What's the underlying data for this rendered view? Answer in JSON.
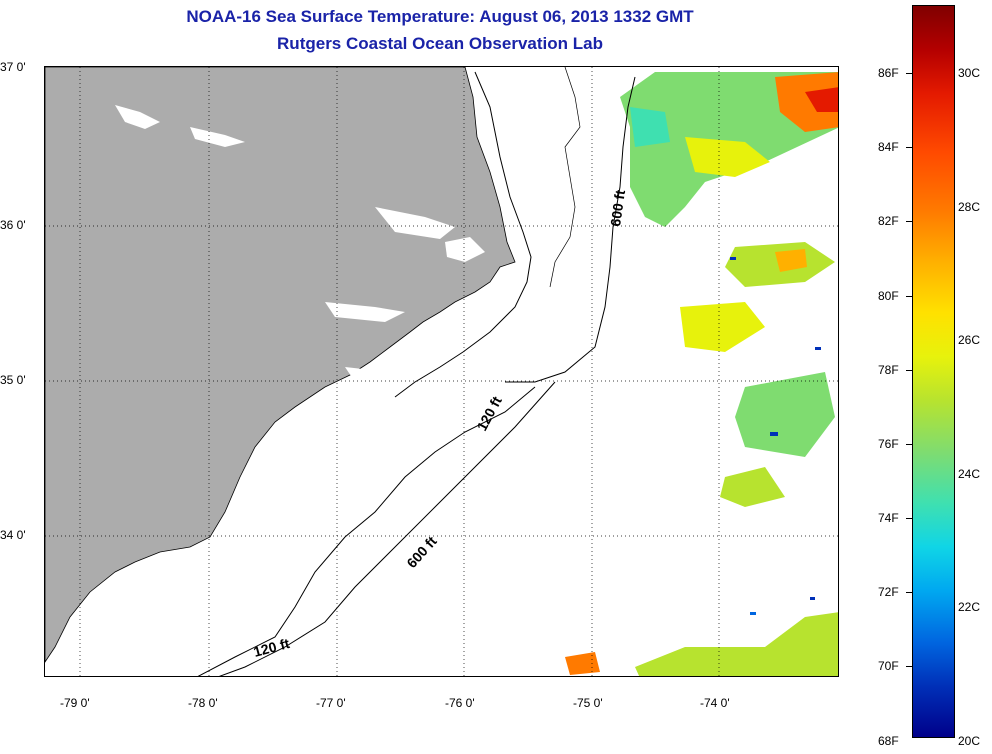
{
  "title": {
    "line1": "NOAA-16 Sea Surface Temperature:  August 06, 2013 1332 GMT",
    "line2": "Rutgers Coastal Ocean Observation Lab"
  },
  "map": {
    "latitude_labels": [
      "37 0'",
      "36 0'",
      "35 0'",
      "34 0'"
    ],
    "longitude_labels": [
      "-79 0'",
      "-78 0'",
      "-77 0'",
      "-76 0'",
      "-75 0'",
      "-74 0'"
    ],
    "contour_labels": [
      "600 ft",
      "120 ft",
      "600 ft",
      "120 ft"
    ],
    "colors": {
      "land": "#acacac",
      "ocean": "#ffffff",
      "coastline": "#000000",
      "grid": "#000000"
    }
  },
  "colorbar": {
    "fahrenheit_labels": [
      "86F",
      "84F",
      "82F",
      "80F",
      "78F",
      "76F",
      "74F",
      "72F",
      "70F",
      "68F"
    ],
    "celsius_labels": [
      "30C",
      "28C",
      "26C",
      "24C",
      "22C",
      "20C"
    ],
    "range_f": [
      68,
      87.5
    ],
    "range_c": [
      20,
      31
    ]
  }
}
